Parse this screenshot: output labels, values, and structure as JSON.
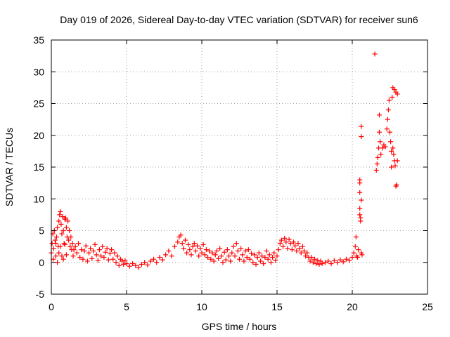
{
  "chart_data": {
    "type": "scatter",
    "title": "Day 019 of 2026, Sidereal Day-to-day VTEC variation (SDTVAR) for receiver sun6",
    "xlabel": "GPS time / hours",
    "ylabel": "SDTVAR / TECUs",
    "xlim": [
      0,
      25
    ],
    "ylim": [
      -5,
      35
    ],
    "x_ticks": [
      0,
      5,
      10,
      15,
      20,
      25
    ],
    "y_ticks": [
      -5,
      0,
      5,
      10,
      15,
      20,
      25,
      30,
      35
    ],
    "x_tick_labels": [
      "0",
      "5",
      "10",
      "15",
      "20",
      "25"
    ],
    "y_tick_labels": [
      "-5",
      "0",
      "5",
      "10",
      "15",
      "20",
      "25",
      "30",
      "35"
    ],
    "grid": true,
    "legend": "none",
    "marker": "+",
    "series": [
      {
        "name": "SDTVAR",
        "color": "#ff0000",
        "marker": "+",
        "points": [
          [
            0.0,
            1.5
          ],
          [
            0.05,
            3.0
          ],
          [
            0.1,
            4.5
          ],
          [
            0.12,
            0.5
          ],
          [
            0.15,
            2.2
          ],
          [
            0.2,
            5.0
          ],
          [
            0.25,
            3.5
          ],
          [
            0.3,
            1.0
          ],
          [
            0.35,
            4.0
          ],
          [
            0.4,
            5.5
          ],
          [
            0.45,
            2.5
          ],
          [
            0.5,
            6.5
          ],
          [
            0.55,
            7.5
          ],
          [
            0.6,
            8.0
          ],
          [
            0.65,
            6.0
          ],
          [
            0.7,
            4.5
          ],
          [
            0.75,
            7.2
          ],
          [
            0.8,
            5.0
          ],
          [
            0.85,
            3.0
          ],
          [
            0.9,
            6.8
          ],
          [
            0.95,
            7.0
          ],
          [
            1.0,
            5.5
          ],
          [
            1.05,
            4.0
          ],
          [
            1.1,
            6.5
          ],
          [
            1.15,
            3.5
          ],
          [
            1.2,
            5.0
          ],
          [
            1.25,
            2.5
          ],
          [
            1.3,
            4.0
          ],
          [
            1.35,
            2.0
          ],
          [
            1.4,
            3.0
          ],
          [
            1.45,
            1.0
          ],
          [
            1.5,
            2.0
          ],
          [
            0.3,
            3.0
          ],
          [
            0.4,
            0.0
          ],
          [
            0.5,
            1.5
          ],
          [
            0.6,
            2.5
          ],
          [
            0.7,
            1.0
          ],
          [
            0.8,
            0.5
          ],
          [
            0.9,
            2.8
          ],
          [
            1.0,
            1.2
          ],
          [
            1.6,
            2.5
          ],
          [
            1.7,
            1.5
          ],
          [
            1.8,
            3.0
          ],
          [
            1.9,
            0.8
          ],
          [
            2.0,
            2.0
          ],
          [
            2.1,
            0.5
          ],
          [
            2.2,
            1.8
          ],
          [
            2.3,
            2.6
          ],
          [
            2.4,
            0.2
          ],
          [
            2.5,
            1.5
          ],
          [
            2.6,
            2.2
          ],
          [
            2.7,
            0.6
          ],
          [
            2.8,
            1.8
          ],
          [
            2.9,
            2.8
          ],
          [
            3.0,
            1.2
          ],
          [
            3.1,
            0.3
          ],
          [
            3.2,
            2.0
          ],
          [
            3.3,
            1.0
          ],
          [
            3.4,
            2.5
          ],
          [
            3.5,
            0.8
          ],
          [
            3.6,
            1.6
          ],
          [
            3.7,
            2.2
          ],
          [
            3.8,
            0.4
          ],
          [
            3.9,
            1.4
          ],
          [
            4.0,
            2.0
          ],
          [
            4.1,
            0.5
          ],
          [
            4.2,
            1.5
          ],
          [
            4.3,
            0.0
          ],
          [
            4.4,
            1.0
          ],
          [
            4.5,
            -0.5
          ],
          [
            4.6,
            0.5
          ],
          [
            4.7,
            0.2
          ],
          [
            4.8,
            -0.3
          ],
          [
            4.9,
            0.3
          ],
          [
            5.0,
            -0.2
          ],
          [
            5.2,
            -0.6
          ],
          [
            5.4,
            -0.2
          ],
          [
            5.6,
            -0.5
          ],
          [
            5.8,
            -0.8
          ],
          [
            6.0,
            -0.3
          ],
          [
            6.2,
            0.0
          ],
          [
            6.4,
            -0.4
          ],
          [
            6.6,
            0.2
          ],
          [
            6.8,
            0.5
          ],
          [
            7.0,
            0.0
          ],
          [
            7.2,
            0.8
          ],
          [
            7.4,
            0.4
          ],
          [
            7.6,
            1.2
          ],
          [
            7.8,
            1.8
          ],
          [
            8.0,
            1.0
          ],
          [
            8.2,
            2.5
          ],
          [
            8.4,
            3.2
          ],
          [
            8.5,
            4.0
          ],
          [
            8.6,
            4.3
          ],
          [
            8.7,
            3.0
          ],
          [
            8.8,
            2.2
          ],
          [
            8.9,
            3.5
          ],
          [
            9.0,
            1.5
          ],
          [
            9.1,
            2.8
          ],
          [
            9.2,
            2.0
          ],
          [
            9.3,
            1.2
          ],
          [
            9.4,
            2.5
          ],
          [
            9.5,
            3.0
          ],
          [
            9.6,
            1.8
          ],
          [
            9.7,
            2.6
          ],
          [
            9.8,
            1.0
          ],
          [
            9.9,
            2.2
          ],
          [
            10.0,
            1.5
          ],
          [
            10.1,
            2.8
          ],
          [
            10.2,
            1.2
          ],
          [
            10.3,
            2.0
          ],
          [
            10.4,
            0.8
          ],
          [
            10.5,
            1.8
          ],
          [
            10.6,
            0.5
          ],
          [
            10.7,
            1.5
          ],
          [
            10.8,
            0.2
          ],
          [
            10.9,
            1.2
          ],
          [
            11.0,
            1.8
          ],
          [
            11.1,
            0.6
          ],
          [
            11.2,
            2.2
          ],
          [
            11.3,
            1.0
          ],
          [
            11.4,
            0.0
          ],
          [
            11.5,
            1.6
          ],
          [
            11.6,
            0.4
          ],
          [
            11.7,
            2.0
          ],
          [
            11.8,
            1.0
          ],
          [
            11.9,
            0.2
          ],
          [
            12.0,
            1.5
          ],
          [
            12.1,
            2.5
          ],
          [
            12.2,
            1.0
          ],
          [
            12.3,
            3.0
          ],
          [
            12.4,
            1.8
          ],
          [
            12.5,
            0.5
          ],
          [
            12.6,
            2.2
          ],
          [
            12.7,
            1.2
          ],
          [
            12.8,
            0.2
          ],
          [
            12.9,
            1.8
          ],
          [
            13.0,
            0.8
          ],
          [
            13.1,
            2.0
          ],
          [
            13.2,
            0.5
          ],
          [
            13.3,
            1.4
          ],
          [
            13.4,
            0.0
          ],
          [
            13.5,
            1.2
          ],
          [
            13.6,
            -0.3
          ],
          [
            13.7,
            0.8
          ],
          [
            13.8,
            1.5
          ],
          [
            13.9,
            0.2
          ],
          [
            14.0,
            1.0
          ],
          [
            14.1,
            -0.2
          ],
          [
            14.2,
            0.8
          ],
          [
            14.3,
            1.8
          ],
          [
            14.4,
            0.5
          ],
          [
            14.5,
            1.2
          ],
          [
            14.6,
            0.0
          ],
          [
            14.7,
            0.8
          ],
          [
            14.8,
            1.5
          ],
          [
            14.9,
            0.3
          ],
          [
            15.0,
            1.0
          ],
          [
            15.1,
            2.0
          ],
          [
            15.2,
            3.0
          ],
          [
            15.3,
            3.5
          ],
          [
            15.4,
            2.5
          ],
          [
            15.5,
            3.8
          ],
          [
            15.6,
            3.2
          ],
          [
            15.7,
            2.2
          ],
          [
            15.8,
            3.6
          ],
          [
            15.9,
            3.0
          ],
          [
            16.0,
            2.0
          ],
          [
            16.1,
            3.2
          ],
          [
            16.2,
            2.6
          ],
          [
            16.3,
            1.8
          ],
          [
            16.4,
            3.0
          ],
          [
            16.5,
            2.2
          ],
          [
            16.6,
            1.5
          ],
          [
            16.7,
            2.5
          ],
          [
            16.8,
            1.8
          ],
          [
            16.9,
            1.0
          ],
          [
            17.0,
            1.5
          ],
          [
            17.1,
            0.8
          ],
          [
            17.2,
            0.2
          ],
          [
            17.3,
            0.8
          ],
          [
            17.4,
            0.0
          ],
          [
            17.5,
            0.5
          ],
          [
            17.6,
            -0.2
          ],
          [
            17.7,
            0.3
          ],
          [
            17.8,
            -0.3
          ],
          [
            17.9,
            0.2
          ],
          [
            18.0,
            -0.2
          ],
          [
            18.2,
            0.0
          ],
          [
            18.4,
            0.2
          ],
          [
            18.6,
            -0.2
          ],
          [
            18.8,
            0.3
          ],
          [
            19.0,
            0.0
          ],
          [
            19.2,
            0.4
          ],
          [
            19.4,
            0.1
          ],
          [
            19.6,
            0.5
          ],
          [
            19.8,
            0.3
          ],
          [
            20.0,
            0.8
          ],
          [
            20.1,
            1.5
          ],
          [
            20.2,
            2.5
          ],
          [
            20.25,
            4.0
          ],
          [
            20.3,
            1.0
          ],
          [
            20.35,
            0.8
          ],
          [
            20.4,
            2.0
          ],
          [
            20.5,
            7.5
          ],
          [
            20.5,
            8.5
          ],
          [
            20.5,
            11.0
          ],
          [
            20.5,
            12.5
          ],
          [
            20.5,
            13.0
          ],
          [
            20.55,
            7.0
          ],
          [
            20.55,
            6.5
          ],
          [
            20.6,
            9.8
          ],
          [
            20.6,
            19.8
          ],
          [
            20.6,
            21.4
          ],
          [
            20.6,
            1.5
          ],
          [
            20.65,
            1.2
          ],
          [
            21.5,
            32.8
          ],
          [
            21.6,
            14.5
          ],
          [
            21.65,
            15.5
          ],
          [
            21.7,
            16.5
          ],
          [
            21.75,
            18.0
          ],
          [
            21.8,
            20.5
          ],
          [
            21.8,
            23.2
          ],
          [
            21.85,
            19.0
          ],
          [
            21.9,
            17.0
          ],
          [
            22.0,
            18.0
          ],
          [
            22.1,
            18.5
          ],
          [
            22.2,
            18.2
          ],
          [
            22.3,
            21.0
          ],
          [
            22.35,
            22.5
          ],
          [
            22.4,
            24.0
          ],
          [
            22.45,
            25.5
          ],
          [
            22.5,
            20.5
          ],
          [
            22.55,
            19.0
          ],
          [
            22.6,
            17.5
          ],
          [
            22.65,
            26.0
          ],
          [
            22.7,
            27.5
          ],
          [
            22.75,
            17.0
          ],
          [
            22.8,
            16.0
          ],
          [
            22.85,
            15.2
          ],
          [
            22.9,
            26.8
          ],
          [
            22.95,
            12.2
          ],
          [
            22.9,
            12.0
          ],
          [
            23.0,
            16.0
          ],
          [
            23.0,
            26.5
          ],
          [
            22.8,
            27.2
          ],
          [
            22.7,
            18.0
          ],
          [
            22.6,
            15.0
          ]
        ]
      }
    ]
  }
}
